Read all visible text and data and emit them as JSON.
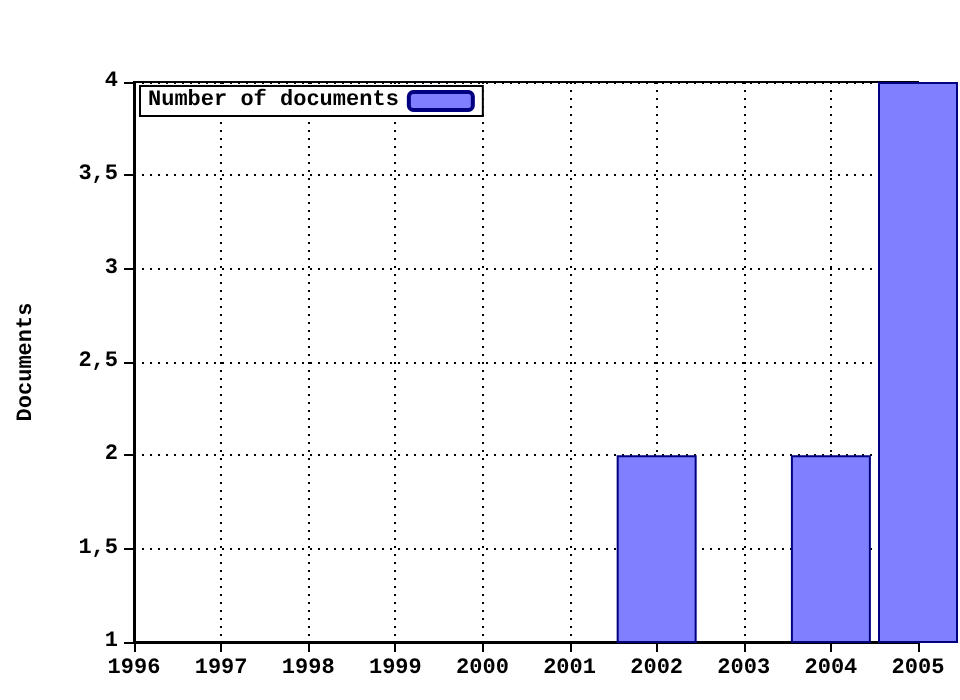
{
  "chart_data": {
    "type": "bar",
    "ylabel": "Documents",
    "x": [
      2002,
      2004,
      2005
    ],
    "series": [
      {
        "name": "Number of documents",
        "color": "#7f7fff",
        "values": [
          2,
          2,
          4
        ]
      }
    ],
    "xlim": [
      1996,
      2005
    ],
    "xticks": [
      1996,
      1997,
      1998,
      1999,
      2000,
      2001,
      2002,
      2003,
      2004,
      2005
    ],
    "ylim": [
      1,
      4
    ],
    "yticks": [
      1,
      {
        "value": 1.5,
        "label": "1,5"
      },
      2,
      {
        "value": 2.5,
        "label": "2,5"
      },
      3,
      {
        "value": 3.5,
        "label": "3,5"
      },
      4
    ],
    "grid": true,
    "legend": "top left"
  }
}
